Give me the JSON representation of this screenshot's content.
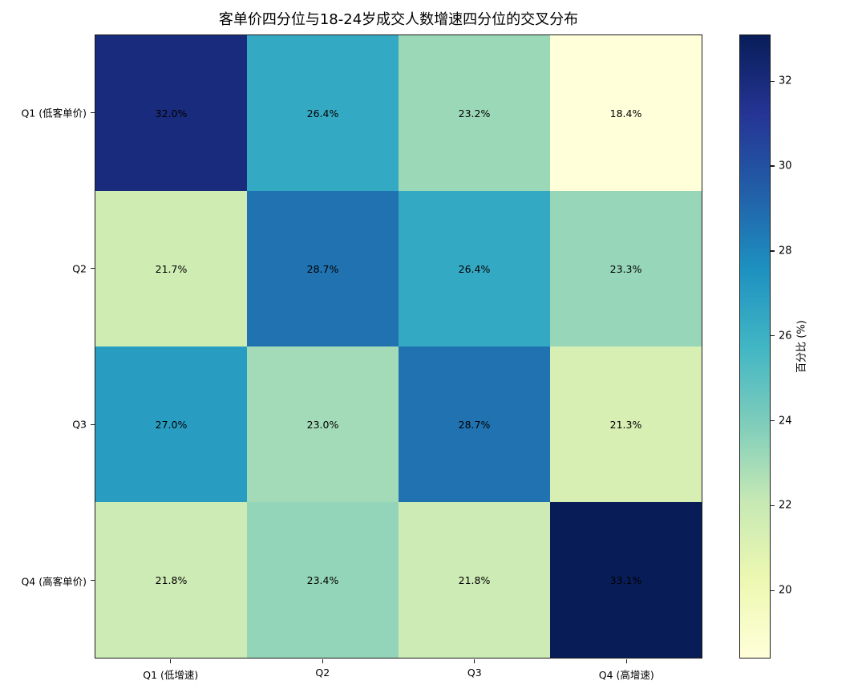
{
  "chart_data": {
    "type": "heatmap",
    "title": "客单价四分位与18-24岁成交人数增速四分位的交叉分布",
    "row_labels": [
      "Q1 (低客单价)",
      "Q2",
      "Q3",
      "Q4 (高客单价)"
    ],
    "col_labels": [
      "Q1 (低增速)",
      "Q2",
      "Q3",
      "Q4 (高增速)"
    ],
    "values": [
      [
        32.0,
        26.4,
        23.2,
        18.4
      ],
      [
        21.7,
        28.7,
        26.4,
        23.3
      ],
      [
        27.0,
        23.0,
        28.7,
        21.3
      ],
      [
        21.8,
        23.4,
        21.8,
        33.1
      ]
    ],
    "cell_label_suffix": "%",
    "cell_label_decimals": 1,
    "vmin": 18.4,
    "vmax": 33.1,
    "colormap": "YlGnBu",
    "colormap_stops": [
      [
        0.0,
        "#ffffd9"
      ],
      [
        0.125,
        "#edf8b1"
      ],
      [
        0.25,
        "#c7e9b4"
      ],
      [
        0.375,
        "#7fcdbb"
      ],
      [
        0.5,
        "#41b6c4"
      ],
      [
        0.625,
        "#1d91c0"
      ],
      [
        0.75,
        "#225ea8"
      ],
      [
        0.875,
        "#253494"
      ],
      [
        1.0,
        "#081d58"
      ]
    ],
    "colorbar_ticks": [
      "20",
      "22",
      "24",
      "26",
      "28",
      "30",
      "32"
    ],
    "colorbar_label": "百分比 (%)",
    "annotation_color": "#000000",
    "axis_color": "#1a1a1a",
    "background_color": "#ffffff",
    "grid": false,
    "legend_position": "right-colorbar"
  }
}
